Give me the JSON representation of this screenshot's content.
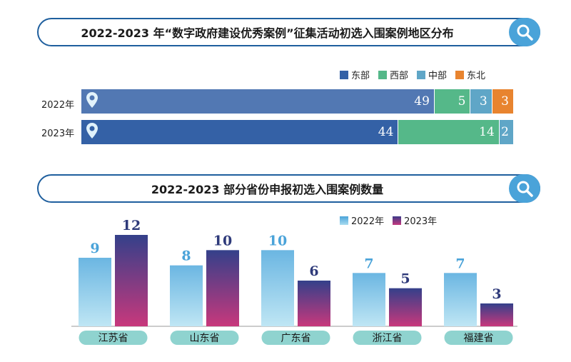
{
  "colors": {
    "east": "#3461a6",
    "west": "#55b889",
    "central": "#5fa6c7",
    "northeast": "#e8842f",
    "y2022_top": "#4aa3d9",
    "y2023_top": "#3d3a8a",
    "y2023_bottom": "#c4397e",
    "label_2022": "#4aa3d9",
    "label_2023": "#2e3a7a",
    "pill": "#8fd3cf"
  },
  "chart1": {
    "title": "2022-2023 年“数字政府建设优秀案例”征集活动初选入围案例地区分布",
    "legend": [
      "东部",
      "西部",
      "中部",
      "东北"
    ]
  },
  "chart2": {
    "title": "2022-2023 部分省份申报初选入围案例数量",
    "legend": [
      "2022年",
      "2023年"
    ]
  },
  "chart_data": [
    {
      "type": "bar",
      "orientation": "horizontal",
      "stacked": true,
      "title": "2022-2023 年“数字政府建设优秀案例”征集活动初选入围案例地区分布",
      "categories": [
        "2022年",
        "2023年"
      ],
      "series": [
        {
          "name": "东部",
          "values": [
            49,
            44
          ]
        },
        {
          "name": "西部",
          "values": [
            5,
            14
          ]
        },
        {
          "name": "中部",
          "values": [
            3,
            2
          ]
        },
        {
          "name": "东北",
          "values": [
            3,
            0
          ]
        }
      ],
      "legend": "top-right"
    },
    {
      "type": "bar",
      "title": "2022-2023 部分省份申报初选入围案例数量",
      "categories": [
        "江苏省",
        "山东省",
        "广东省",
        "浙江省",
        "福建省"
      ],
      "series": [
        {
          "name": "2022年",
          "values": [
            9,
            8,
            10,
            7,
            7
          ]
        },
        {
          "name": "2023年",
          "values": [
            12,
            10,
            6,
            5,
            3
          ]
        }
      ],
      "ylim": [
        0,
        12
      ],
      "legend": "top-right"
    }
  ]
}
